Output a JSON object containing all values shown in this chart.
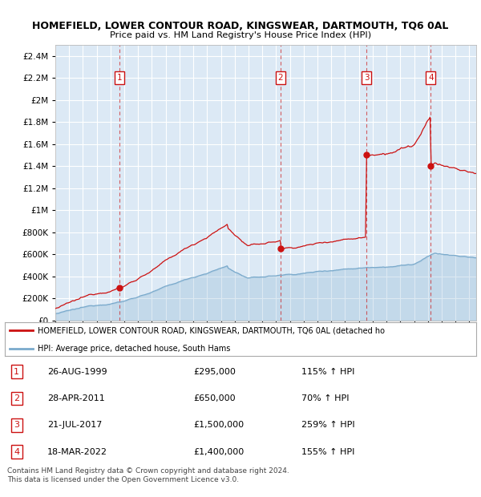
{
  "title": "HOMEFIELD, LOWER CONTOUR ROAD, KINGSWEAR, DARTMOUTH, TQ6 0AL",
  "subtitle": "Price paid vs. HM Land Registry's House Price Index (HPI)",
  "background_color": "#dce9f5",
  "plot_bg_color": "#dce9f5",
  "sale_dates_num": [
    1999.65,
    2011.32,
    2017.55,
    2022.21
  ],
  "sale_prices": [
    295000,
    650000,
    1500000,
    1400000
  ],
  "sale_labels": [
    "1",
    "2",
    "3",
    "4"
  ],
  "hpi_color": "#7aaacc",
  "price_color": "#cc1111",
  "legend_entries": [
    "HOMEFIELD, LOWER CONTOUR ROAD, KINGSWEAR, DARTMOUTH, TQ6 0AL (detached ho",
    "HPI: Average price, detached house, South Hams"
  ],
  "table_rows": [
    [
      "1",
      "26-AUG-1999",
      "£295,000",
      "115% ↑ HPI"
    ],
    [
      "2",
      "28-APR-2011",
      "£650,000",
      "70% ↑ HPI"
    ],
    [
      "3",
      "21-JUL-2017",
      "£1,500,000",
      "259% ↑ HPI"
    ],
    [
      "4",
      "18-MAR-2022",
      "£1,400,000",
      "155% ↑ HPI"
    ]
  ],
  "footer": "Contains HM Land Registry data © Crown copyright and database right 2024.\nThis data is licensed under the Open Government Licence v3.0.",
  "ylim": [
    0,
    2500000
  ],
  "yticks": [
    0,
    200000,
    400000,
    600000,
    800000,
    1000000,
    1200000,
    1400000,
    1600000,
    1800000,
    2000000,
    2200000,
    2400000
  ],
  "ytick_labels": [
    "£0",
    "£200K",
    "£400K",
    "£600K",
    "£800K",
    "£1M",
    "£1.2M",
    "£1.4M",
    "£1.6M",
    "£1.8M",
    "£2M",
    "£2.2M",
    "£2.4M"
  ],
  "xlim": [
    1995,
    2025.5
  ],
  "xticks": [
    1995,
    1996,
    1997,
    1998,
    1999,
    2000,
    2001,
    2002,
    2003,
    2004,
    2005,
    2006,
    2007,
    2008,
    2009,
    2010,
    2011,
    2012,
    2013,
    2014,
    2015,
    2016,
    2017,
    2018,
    2019,
    2020,
    2021,
    2022,
    2023,
    2024,
    2025
  ]
}
